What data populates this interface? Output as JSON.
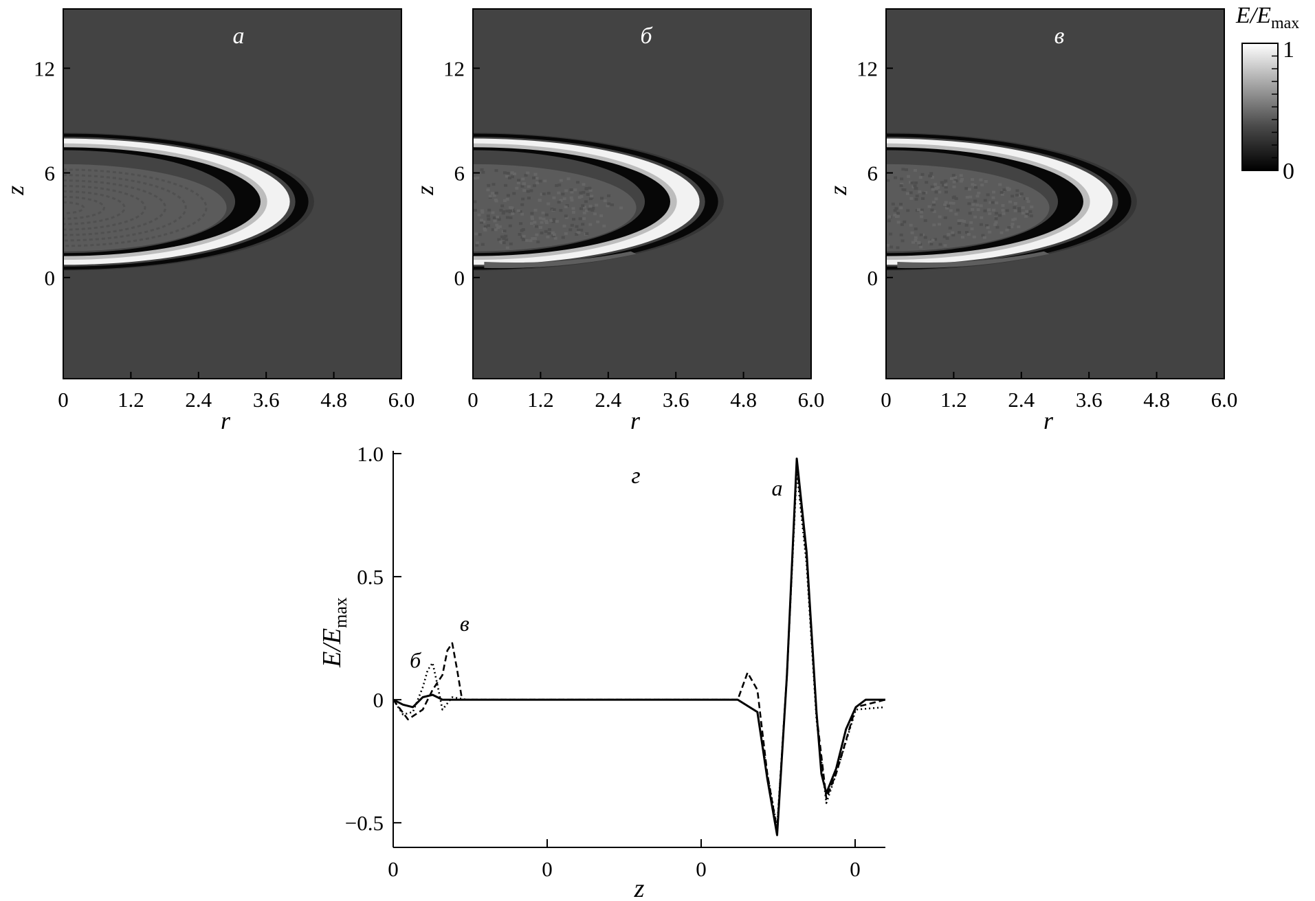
{
  "figure": {
    "panels": [
      {
        "id": "a",
        "label": "а",
        "inner_mode": "rings"
      },
      {
        "id": "b",
        "label": "б",
        "inner_mode": "dots"
      },
      {
        "id": "c",
        "label": "в",
        "inner_mode": "dots"
      }
    ],
    "map_axes": {
      "xlabel": "r",
      "ylabel": "z",
      "xticks": [
        "0",
        "1.2",
        "2.4",
        "3.6",
        "4.8",
        "6.0"
      ],
      "xlim": [
        0,
        6.0
      ],
      "yticks": [
        "0",
        "6",
        "12"
      ],
      "ytick_values": [
        0,
        6,
        12
      ],
      "ylim": [
        -5.8,
        15.4
      ]
    },
    "colorbar": {
      "title_main": "E/E",
      "title_sub": "max",
      "max_label": "1",
      "min_label": "0",
      "colormap": [
        "#000000",
        "#4a4a4a",
        "#ffffff"
      ]
    },
    "colors": {
      "map_background": "#434343",
      "inner_region": "#5b5b5b",
      "bright_ring": "#f2f2f2",
      "dark_ring": "#070707",
      "outer_shell": "#353535"
    }
  },
  "chart_data": {
    "type": "line",
    "panel_label": "г",
    "xlabel": "z",
    "ylabel": "E/E",
    "ylabel_sub": "max",
    "xticks": [
      "0",
      "0",
      "0",
      "0"
    ],
    "yticks": [
      "1.0",
      "0.5",
      "0",
      "−0.5"
    ],
    "ytick_values": [
      1.0,
      0.5,
      0,
      -0.5
    ],
    "ylim": [
      -0.6,
      1.0
    ],
    "xlim": [
      0,
      1
    ],
    "curve_labels": [
      {
        "text": "а",
        "x": 0.78,
        "y": 0.83
      },
      {
        "text": "б",
        "x": 0.045,
        "y": 0.13
      },
      {
        "text": "в",
        "x": 0.145,
        "y": 0.28
      }
    ],
    "series": [
      {
        "id": "a",
        "style": "solid",
        "x": [
          0,
          0.02,
          0.04,
          0.06,
          0.08,
          0.1,
          0.15,
          0.2,
          0.3,
          0.4,
          0.5,
          0.6,
          0.7,
          0.74,
          0.76,
          0.78,
          0.8,
          0.82,
          0.84,
          0.86,
          0.87,
          0.88,
          0.9,
          0.92,
          0.94,
          0.96,
          1.0
        ],
        "y": [
          0,
          -0.02,
          -0.03,
          0.01,
          0.02,
          0.0,
          0.0,
          0.0,
          0.0,
          0.0,
          0.0,
          0.0,
          0.0,
          -0.05,
          -0.32,
          -0.55,
          0.1,
          0.98,
          0.6,
          -0.05,
          -0.3,
          -0.38,
          -0.28,
          -0.12,
          -0.03,
          0.0,
          0.0
        ]
      },
      {
        "id": "b",
        "style": "dotted",
        "x": [
          0,
          0.02,
          0.04,
          0.06,
          0.07,
          0.08,
          0.09,
          0.1,
          0.12,
          0.15,
          0.2,
          0.3,
          0.4,
          0.5,
          0.6,
          0.7,
          0.74,
          0.76,
          0.78,
          0.8,
          0.82,
          0.84,
          0.86,
          0.88,
          0.9,
          0.94,
          1.0
        ],
        "y": [
          0,
          -0.06,
          -0.05,
          0.05,
          0.12,
          0.15,
          0.06,
          -0.04,
          0.01,
          0.0,
          0.0,
          0.0,
          0.0,
          0.0,
          0.0,
          0.0,
          -0.05,
          -0.3,
          -0.52,
          0.1,
          0.93,
          0.55,
          -0.08,
          -0.42,
          -0.3,
          -0.04,
          -0.03
        ]
      },
      {
        "id": "c",
        "style": "dashed",
        "x": [
          0,
          0.03,
          0.06,
          0.08,
          0.1,
          0.11,
          0.12,
          0.13,
          0.14,
          0.16,
          0.2,
          0.3,
          0.4,
          0.5,
          0.6,
          0.7,
          0.72,
          0.74,
          0.76,
          0.78,
          0.8,
          0.82,
          0.84,
          0.86,
          0.88,
          0.9,
          0.94,
          1.0
        ],
        "y": [
          0,
          -0.08,
          -0.04,
          0.04,
          0.1,
          0.2,
          0.23,
          0.12,
          0.0,
          0.0,
          0.0,
          0.0,
          0.0,
          0.0,
          0.0,
          0.0,
          0.11,
          0.04,
          -0.3,
          -0.53,
          0.1,
          0.96,
          0.58,
          -0.06,
          -0.4,
          -0.3,
          -0.03,
          0.0
        ]
      }
    ]
  }
}
